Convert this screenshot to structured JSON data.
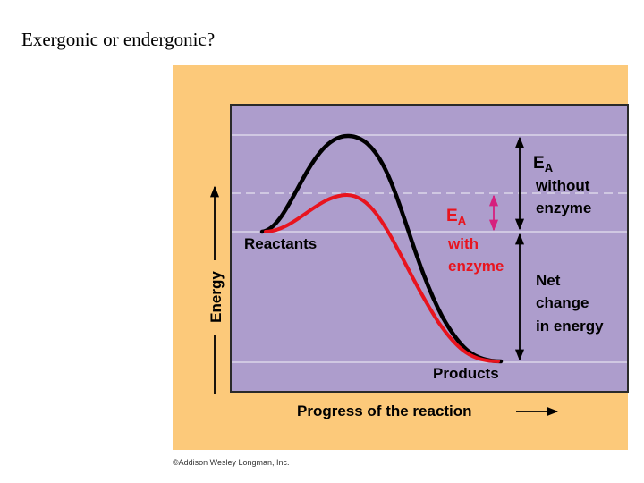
{
  "slide": {
    "title": "Exergonic or endergonic?"
  },
  "figure": {
    "colors": {
      "panel": "#fcc97a",
      "plot": "#ad9dcc",
      "line_without_enzyme": "#000000",
      "line_with_enzyme": "#e8141e",
      "arrow_with_enzyme": "#d6207e"
    },
    "labels": {
      "y_axis": "Energy",
      "x_axis": "Progress of the reaction",
      "reactants": "Reactants",
      "products": "Products",
      "ea_without_main": "E",
      "ea_without_sub": "A",
      "ea_without_line1": "without",
      "ea_without_line2": "enzyme",
      "ea_with_main": "E",
      "ea_with_sub": "A",
      "ea_with_line1": "with",
      "ea_with_line2": "enzyme",
      "net_line1": "Net",
      "net_line2": "change",
      "net_line3": "in energy",
      "credit": "©Addison Wesley Longman, Inc."
    }
  }
}
